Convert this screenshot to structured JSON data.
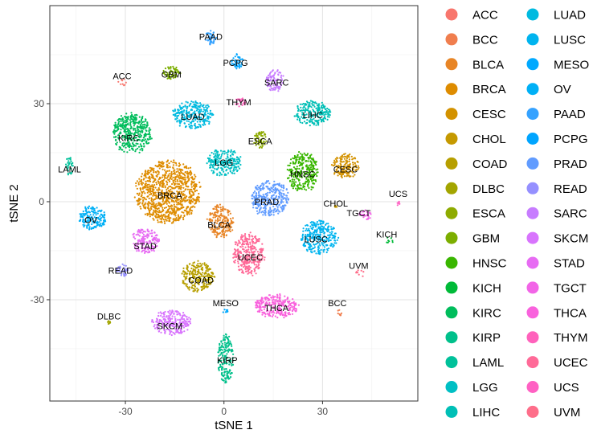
{
  "chart_data": {
    "type": "scatter",
    "title": "",
    "xlabel": "tSNE 1",
    "ylabel": "tSNE 2",
    "xlim": [
      -53,
      59
    ],
    "ylim": [
      -61,
      60
    ],
    "xticks": [
      -30,
      0,
      30
    ],
    "yticks": [
      -30,
      0,
      30
    ],
    "xtick_labels": [
      "-30",
      "0",
      "30"
    ],
    "ytick_labels": [
      "-30",
      "0",
      "30"
    ],
    "grid": true,
    "legend_position": "right",
    "clusters": [
      {
        "name": "ACC",
        "color": "#F8766D",
        "x": -31,
        "y": 36.5,
        "rx": 1.5,
        "ry": 1.3,
        "density": 0.5
      },
      {
        "name": "BCC",
        "color": "#F07E4E",
        "x": 35,
        "y": -34,
        "rx": 1.2,
        "ry": 1.3,
        "density": 0.5
      },
      {
        "name": "BLCA",
        "color": "#E88526",
        "x": -1,
        "y": -6,
        "rx": 4.2,
        "ry": 5.5,
        "density": 1
      },
      {
        "name": "BRCA",
        "color": "#DE8C00",
        "x": -17,
        "y": 3,
        "rx": 10.5,
        "ry": 10,
        "density": 1
      },
      {
        "name": "CESC",
        "color": "#D39200",
        "x": 37,
        "y": 11,
        "rx": 4.5,
        "ry": 4,
        "density": 1
      },
      {
        "name": "CHOL",
        "color": "#C59900",
        "x": 34,
        "y": -1.5,
        "rx": 0.4,
        "ry": 0.4,
        "density": 0.3
      },
      {
        "name": "COAD",
        "color": "#B79F00",
        "x": -8,
        "y": -23,
        "rx": 5.5,
        "ry": 5,
        "density": 1
      },
      {
        "name": "DLBC",
        "color": "#A3A500",
        "x": -35,
        "y": -37,
        "rx": 0.4,
        "ry": 0.6,
        "density": 0.3
      },
      {
        "name": "ESCA",
        "color": "#8EAB00",
        "x": 11,
        "y": 19,
        "rx": 2,
        "ry": 3,
        "density": 1
      },
      {
        "name": "GBM",
        "color": "#7CAE00",
        "x": -16,
        "y": 39.5,
        "rx": 3,
        "ry": 2.2,
        "density": 1
      },
      {
        "name": "HNSC",
        "color": "#39B600",
        "x": 24,
        "y": 9,
        "rx": 5,
        "ry": 6.5,
        "density": 1
      },
      {
        "name": "KICH",
        "color": "#00BA38",
        "x": 50,
        "y": -12,
        "rx": 1.5,
        "ry": 1.2,
        "density": 0.5
      },
      {
        "name": "KIRC",
        "color": "#00BD5C",
        "x": -28,
        "y": 21,
        "rx": 6.5,
        "ry": 6.5,
        "density": 1
      },
      {
        "name": "KIRP",
        "color": "#00C08B",
        "x": 0.5,
        "y": -48,
        "rx": 2.5,
        "ry": 8,
        "density": 1
      },
      {
        "name": "LAML",
        "color": "#00C19A",
        "x": -47,
        "y": 11,
        "rx": 1.2,
        "ry": 3,
        "density": 1
      },
      {
        "name": "LGG",
        "color": "#00BFC4",
        "x": 0,
        "y": 12,
        "rx": 5.5,
        "ry": 4.5,
        "density": 1
      },
      {
        "name": "LIHC",
        "color": "#00BFB6",
        "x": 27,
        "y": 27,
        "rx": 6,
        "ry": 4,
        "density": 1
      },
      {
        "name": "LUAD",
        "color": "#00BAE0",
        "x": -9.5,
        "y": 26.5,
        "rx": 6.5,
        "ry": 4.5,
        "density": 1
      },
      {
        "name": "LUSC",
        "color": "#00B4EF",
        "x": 29,
        "y": -11,
        "rx": 6,
        "ry": 5.5,
        "density": 1
      },
      {
        "name": "MESO",
        "color": "#00A9FF",
        "x": 0.5,
        "y": -33.5,
        "rx": 1,
        "ry": 1,
        "density": 0.5
      },
      {
        "name": "OV",
        "color": "#00B0F6",
        "x": -40,
        "y": -5,
        "rx": 4.5,
        "ry": 4,
        "density": 1
      },
      {
        "name": "PAAD",
        "color": "#35A2FF",
        "x": -4,
        "y": 50,
        "rx": 1.8,
        "ry": 2.5,
        "density": 1
      },
      {
        "name": "PCPG",
        "color": "#00A5FF",
        "x": 4,
        "y": 43,
        "rx": 2,
        "ry": 2.5,
        "density": 1
      },
      {
        "name": "PRAD",
        "color": "#619CFF",
        "x": 14,
        "y": 1,
        "rx": 6,
        "ry": 6,
        "density": 1
      },
      {
        "name": "READ",
        "color": "#9590FF",
        "x": -31,
        "y": -21,
        "rx": 2,
        "ry": 2,
        "density": 1
      },
      {
        "name": "SARC",
        "color": "#C77CFF",
        "x": 15.5,
        "y": 37,
        "rx": 3,
        "ry": 3.5,
        "density": 1
      },
      {
        "name": "SKCM",
        "color": "#D874FD",
        "x": -16,
        "y": -37,
        "rx": 6.5,
        "ry": 4,
        "density": 1
      },
      {
        "name": "STAD",
        "color": "#E76BF3",
        "x": -24,
        "y": -12,
        "rx": 4.5,
        "ry": 4,
        "density": 1
      },
      {
        "name": "TGCT",
        "color": "#F265E7",
        "x": 43,
        "y": -4,
        "rx": 2,
        "ry": 1.8,
        "density": 1
      },
      {
        "name": "THCA",
        "color": "#F962DD",
        "x": 16,
        "y": -32,
        "rx": 7.5,
        "ry": 3.8,
        "density": 1
      },
      {
        "name": "THYM",
        "color": "#FF62BC",
        "x": 5,
        "y": 30.5,
        "rx": 2,
        "ry": 1.5,
        "density": 0.8
      },
      {
        "name": "UCEC",
        "color": "#FF6A98",
        "x": 7.5,
        "y": -16,
        "rx": 5,
        "ry": 7,
        "density": 1
      },
      {
        "name": "UCS",
        "color": "#FF61C3",
        "x": 53,
        "y": -0.5,
        "rx": 0.6,
        "ry": 0.8,
        "density": 0.3
      },
      {
        "name": "UVM",
        "color": "#FE6E8A",
        "x": 41.5,
        "y": -22,
        "rx": 1.5,
        "ry": 1.2,
        "density": 0.5
      }
    ],
    "cluster_labels": [
      {
        "text": "ACC",
        "x": -31,
        "y": 38.5
      },
      {
        "text": "BCC",
        "x": 34.5,
        "y": -31
      },
      {
        "text": "BLCA",
        "x": -1.5,
        "y": -7
      },
      {
        "text": "BRCA",
        "x": -16.5,
        "y": 2
      },
      {
        "text": "CESC",
        "x": 37,
        "y": 10
      },
      {
        "text": "CHOL",
        "x": 34,
        "y": -0.5
      },
      {
        "text": "COAD",
        "x": -7,
        "y": -24
      },
      {
        "text": "DLBC",
        "x": -35,
        "y": -35
      },
      {
        "text": "ESCA",
        "x": 11,
        "y": 18.5
      },
      {
        "text": "GBM",
        "x": -16,
        "y": 39
      },
      {
        "text": "HNSC",
        "x": 24,
        "y": 8.5
      },
      {
        "text": "KICH",
        "x": 49.5,
        "y": -10
      },
      {
        "text": "KIRC",
        "x": -29,
        "y": 19.5
      },
      {
        "text": "KIRP",
        "x": 1,
        "y": -48.5
      },
      {
        "text": "LAML",
        "x": -47,
        "y": 10
      },
      {
        "text": "LGG",
        "x": 0,
        "y": 12
      },
      {
        "text": "LIHC",
        "x": 27,
        "y": 26.5
      },
      {
        "text": "LUAD",
        "x": -9.5,
        "y": 26
      },
      {
        "text": "LUSC",
        "x": 28,
        "y": -11.5
      },
      {
        "text": "MESO",
        "x": 0.5,
        "y": -31
      },
      {
        "text": "OV",
        "x": -40.5,
        "y": -5.5
      },
      {
        "text": "PAAD",
        "x": -4,
        "y": 50.5
      },
      {
        "text": "PCPG",
        "x": 3.5,
        "y": 42.5
      },
      {
        "text": "PRAD",
        "x": 13,
        "y": 0
      },
      {
        "text": "READ",
        "x": -31.5,
        "y": -21
      },
      {
        "text": "SARC",
        "x": 16,
        "y": 36.5
      },
      {
        "text": "SKCM",
        "x": -16.5,
        "y": -38
      },
      {
        "text": "STAD",
        "x": -24,
        "y": -13.5
      },
      {
        "text": "TGCT",
        "x": 41,
        "y": -3.5
      },
      {
        "text": "THCA",
        "x": 16,
        "y": -32.5
      },
      {
        "text": "THYM",
        "x": 4.5,
        "y": 30.5
      },
      {
        "text": "UCEC",
        "x": 8,
        "y": -17
      },
      {
        "text": "UCS",
        "x": 53,
        "y": 2.5
      },
      {
        "text": "UVM",
        "x": 41,
        "y": -19.5
      }
    ]
  }
}
